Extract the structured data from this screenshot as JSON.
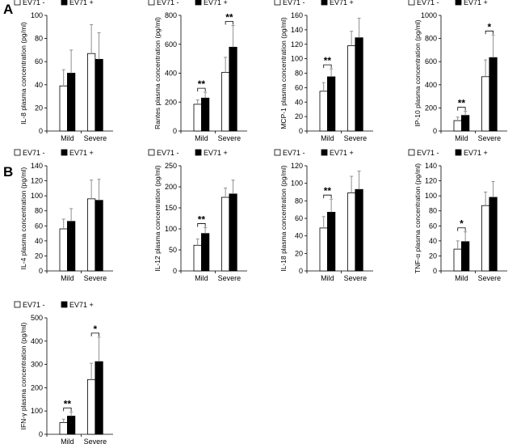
{
  "panel_labels": [
    "A",
    "B"
  ],
  "legend": {
    "neg": "EV71 -",
    "pos": "EV71 +"
  },
  "colors": {
    "neg": "#ffffff",
    "pos": "#000000",
    "stroke": "#000000",
    "error": "#909090"
  },
  "chart_data": [
    {
      "type": "bar",
      "categories": [
        "Mild",
        "Severe"
      ],
      "ylabel": "IL-8 plasma concentration (pg/ml)",
      "ylim": [
        0,
        100
      ],
      "yticks": [
        0,
        20,
        40,
        60,
        80,
        100
      ],
      "series": [
        {
          "name": "EV71 -",
          "values": [
            39,
            67
          ],
          "errors": [
            14,
            25
          ]
        },
        {
          "name": "EV71 +",
          "values": [
            50,
            62
          ],
          "errors": [
            20,
            23
          ]
        }
      ],
      "annotations": [
        {
          "category": "Mild",
          "text": ""
        },
        {
          "category": "Severe",
          "text": ""
        }
      ]
    },
    {
      "type": "bar",
      "categories": [
        "Mild",
        "Severe"
      ],
      "ylabel": "Rantes plasma concentration (pg/ml)",
      "ylim": [
        0,
        800
      ],
      "yticks": [
        0,
        200,
        400,
        600,
        800
      ],
      "series": [
        {
          "name": "EV71 -",
          "values": [
            185,
            405
          ],
          "errors": [
            30,
            105
          ]
        },
        {
          "name": "EV71 +",
          "values": [
            228,
            580
          ],
          "errors": [
            40,
            150
          ]
        }
      ],
      "annotations": [
        {
          "category": "Mild",
          "text": "**"
        },
        {
          "category": "Severe",
          "text": "**"
        }
      ]
    },
    {
      "type": "bar",
      "categories": [
        "Mild",
        "Severe"
      ],
      "ylabel": "MCP-1 plasma concentration (pg/ml)",
      "ylim": [
        0,
        160
      ],
      "yticks": [
        0,
        20,
        40,
        60,
        80,
        100,
        120,
        140,
        160
      ],
      "series": [
        {
          "name": "EV71 -",
          "values": [
            55,
            118
          ],
          "errors": [
            12,
            20
          ]
        },
        {
          "name": "EV71 +",
          "values": [
            75,
            129
          ],
          "errors": [
            11,
            27
          ]
        }
      ],
      "annotations": [
        {
          "category": "Mild",
          "text": "**"
        },
        {
          "category": "Severe",
          "text": ""
        }
      ]
    },
    {
      "type": "bar",
      "categories": [
        "Mild",
        "Severe"
      ],
      "ylabel": "IP-10 plasma concentration (pg/ml)",
      "ylim": [
        0,
        1000
      ],
      "yticks": [
        0,
        200,
        400,
        600,
        800,
        1000
      ],
      "series": [
        {
          "name": "EV71 -",
          "values": [
            90,
            470
          ],
          "errors": [
            30,
            145
          ]
        },
        {
          "name": "EV71 +",
          "values": [
            135,
            635
          ],
          "errors": [
            35,
            195
          ]
        }
      ],
      "annotations": [
        {
          "category": "Mild",
          "text": "**"
        },
        {
          "category": "Severe",
          "text": "*"
        }
      ]
    },
    {
      "type": "bar",
      "categories": [
        "Mild",
        "Severe"
      ],
      "ylabel": "IL-4 plasma concentration (pg/ml)",
      "ylim": [
        0,
        140
      ],
      "yticks": [
        0,
        20,
        40,
        60,
        80,
        100,
        120,
        140
      ],
      "series": [
        {
          "name": "EV71 -",
          "values": [
            56,
            96
          ],
          "errors": [
            13,
            25
          ]
        },
        {
          "name": "EV71 +",
          "values": [
            66,
            94
          ],
          "errors": [
            17,
            28
          ]
        }
      ],
      "annotations": [
        {
          "category": "Mild",
          "text": ""
        },
        {
          "category": "Severe",
          "text": ""
        }
      ]
    },
    {
      "type": "bar",
      "categories": [
        "Mild",
        "Severe"
      ],
      "ylabel": "IL-12 plasma concentration (pg/ml)",
      "ylim": [
        0,
        250
      ],
      "yticks": [
        0,
        50,
        100,
        150,
        200,
        250
      ],
      "series": [
        {
          "name": "EV71 -",
          "values": [
            61,
            175
          ],
          "errors": [
            15,
            22
          ]
        },
        {
          "name": "EV71 +",
          "values": [
            89,
            183
          ],
          "errors": [
            14,
            33
          ]
        }
      ],
      "annotations": [
        {
          "category": "Mild",
          "text": "**"
        },
        {
          "category": "Severe",
          "text": ""
        }
      ]
    },
    {
      "type": "bar",
      "categories": [
        "Mild",
        "Severe"
      ],
      "ylabel": "IL-18 plasma concentration (pg/ml)",
      "ylim": [
        0,
        120
      ],
      "yticks": [
        0,
        20,
        40,
        60,
        80,
        100,
        120
      ],
      "series": [
        {
          "name": "EV71 -",
          "values": [
            49,
            89
          ],
          "errors": [
            13,
            19
          ]
        },
        {
          "name": "EV71 +",
          "values": [
            67,
            93
          ],
          "errors": [
            15,
            21
          ]
        }
      ],
      "annotations": [
        {
          "category": "Mild",
          "text": "**"
        },
        {
          "category": "Severe",
          "text": ""
        }
      ]
    },
    {
      "type": "bar",
      "categories": [
        "Mild",
        "Severe"
      ],
      "ylabel": "TNF-α plasma concentration (pg/ml)",
      "ylim": [
        0,
        140
      ],
      "yticks": [
        0,
        20,
        40,
        60,
        80,
        100,
        120,
        140
      ],
      "series": [
        {
          "name": "EV71 -",
          "values": [
            29,
            87
          ],
          "errors": [
            11,
            18
          ]
        },
        {
          "name": "EV71 +",
          "values": [
            39,
            98
          ],
          "errors": [
            13,
            21
          ]
        }
      ],
      "annotations": [
        {
          "category": "Mild",
          "text": "*"
        },
        {
          "category": "Severe",
          "text": ""
        }
      ]
    },
    {
      "type": "bar",
      "categories": [
        "Mild",
        "Severe"
      ],
      "ylabel": "IFN-γ plasma concentration (pg/ml)",
      "ylim": [
        0,
        500
      ],
      "yticks": [
        0,
        100,
        200,
        300,
        400,
        500
      ],
      "series": [
        {
          "name": "EV71 -",
          "values": [
            50,
            235
          ],
          "errors": [
            15,
            70
          ]
        },
        {
          "name": "EV71 +",
          "values": [
            78,
            312
          ],
          "errors": [
            18,
            105
          ]
        }
      ],
      "annotations": [
        {
          "category": "Mild",
          "text": "**"
        },
        {
          "category": "Severe",
          "text": "*"
        }
      ]
    }
  ]
}
